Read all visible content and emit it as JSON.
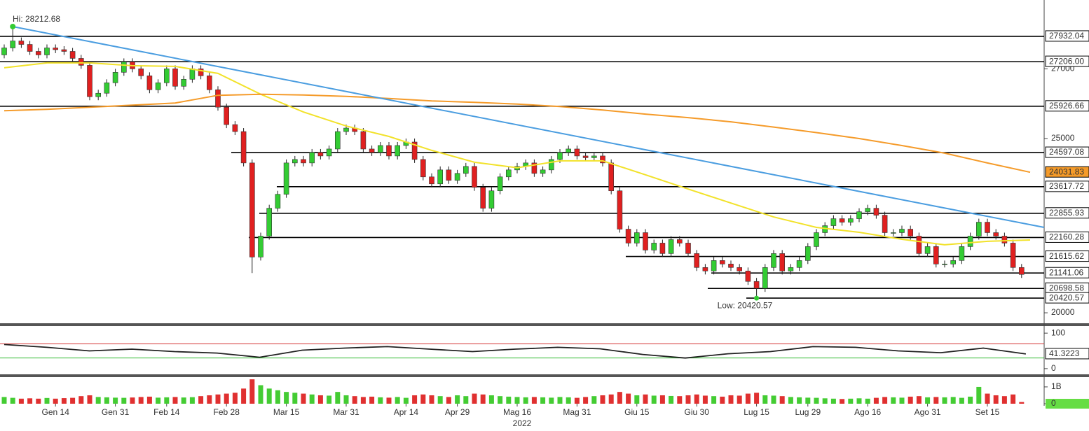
{
  "chart_data": [
    {
      "type": "candlestick",
      "open": [
        27400,
        27600,
        27800,
        27700,
        27500,
        27400,
        27600,
        27550,
        27500,
        27300,
        27100,
        26200,
        26300,
        26600,
        26900,
        27200,
        27000,
        26800,
        26400,
        26600,
        27000,
        26500,
        26700,
        27000,
        26800,
        26400,
        25900,
        25400,
        25200,
        24300,
        21600,
        22200,
        23000,
        23400,
        24300,
        24400,
        24300,
        24600,
        24500,
        24700,
        25200,
        25300,
        25200,
        24700,
        24600,
        24800,
        24500,
        24800,
        24900,
        24400,
        23900,
        23700,
        24100,
        23800,
        24000,
        24200,
        23600,
        23000,
        23500,
        23900,
        24100,
        24200,
        24300,
        24000,
        24100,
        24400,
        24600,
        24700,
        24500,
        24450,
        24500,
        24300,
        23500,
        22400,
        22000,
        22300,
        21800,
        22000,
        21700,
        22100,
        22000,
        21700,
        21300,
        21200,
        21500,
        21400,
        21300,
        21200,
        20900,
        20700,
        21300,
        21700,
        21200,
        21300,
        21500,
        21900,
        22300,
        22500,
        22700,
        22600,
        22700,
        22900,
        23000,
        22800,
        22300,
        22300,
        22400,
        22200,
        21700,
        21900,
        21400,
        21400,
        21500,
        21900,
        22200,
        22600,
        22300,
        22200,
        22000,
        21300
      ],
      "high": [
        27700,
        28212.68,
        27900,
        27800,
        27600,
        27700,
        27700,
        27650,
        27600,
        27400,
        27200,
        26400,
        26700,
        27000,
        27300,
        27300,
        27100,
        26900,
        26700,
        27100,
        27100,
        26800,
        27100,
        27100,
        26900,
        26500,
        26000,
        25500,
        25300,
        24400,
        22300,
        23100,
        23500,
        24400,
        24500,
        24500,
        24700,
        24700,
        24800,
        25300,
        25400,
        25400,
        25300,
        24800,
        24900,
        24900,
        24900,
        25000,
        25000,
        24500,
        24000,
        24200,
        24200,
        24100,
        24300,
        24300,
        23700,
        23600,
        24000,
        24200,
        24300,
        24400,
        24400,
        24200,
        24500,
        24700,
        24800,
        24800,
        24600,
        24600,
        24600,
        24400,
        23600,
        22500,
        22400,
        22400,
        22100,
        22100,
        22200,
        22200,
        22100,
        21800,
        21400,
        21600,
        21600,
        21500,
        21400,
        21300,
        21000,
        21400,
        21800,
        21800,
        21400,
        21600,
        22000,
        22400,
        22600,
        22800,
        22800,
        22800,
        23000,
        23100,
        23100,
        22900,
        22400,
        22500,
        22500,
        22300,
        22000,
        22000,
        21500,
        21600,
        22000,
        22300,
        22700,
        22700,
        22400,
        22300,
        22100,
        21400
      ],
      "low": [
        27300,
        27500,
        27600,
        27400,
        27300,
        27300,
        27450,
        27400,
        27200,
        27000,
        26100,
        26100,
        26200,
        26500,
        26800,
        26900,
        26700,
        26300,
        26300,
        26500,
        26400,
        26400,
        26600,
        26700,
        26300,
        25800,
        25300,
        25100,
        24200,
        21140,
        21500,
        22100,
        22900,
        23300,
        24200,
        24200,
        24200,
        24400,
        24400,
        24600,
        25100,
        25100,
        24600,
        24500,
        24500,
        24400,
        24400,
        24700,
        24300,
        23800,
        23600,
        23600,
        23700,
        23700,
        23900,
        23500,
        22900,
        22900,
        23400,
        23800,
        24000,
        24100,
        23900,
        23900,
        24000,
        24300,
        24500,
        24400,
        24350,
        24350,
        24200,
        23400,
        22300,
        21900,
        21900,
        21700,
        21700,
        21600,
        21600,
        21900,
        21600,
        21200,
        21100,
        21100,
        21300,
        21200,
        21100,
        20800,
        20420.57,
        20600,
        21200,
        21100,
        21100,
        21200,
        21400,
        21800,
        22200,
        22400,
        22500,
        22500,
        22600,
        22800,
        22700,
        22200,
        22200,
        22200,
        22100,
        21600,
        21600,
        21300,
        21300,
        21300,
        21400,
        21800,
        22100,
        22200,
        22100,
        21900,
        21200,
        21000
      ],
      "close": [
        27600,
        27800,
        27700,
        27500,
        27400,
        27600,
        27550,
        27500,
        27300,
        27100,
        26200,
        26300,
        26600,
        26900,
        27200,
        27000,
        26800,
        26400,
        26600,
        27000,
        26500,
        26700,
        27000,
        26800,
        26400,
        25900,
        25400,
        25200,
        24300,
        21600,
        22200,
        23000,
        23400,
        24300,
        24400,
        24300,
        24600,
        24500,
        24700,
        25200,
        25300,
        25200,
        24700,
        24600,
        24800,
        24500,
        24800,
        24900,
        24400,
        23900,
        23700,
        24100,
        23800,
        24000,
        24200,
        23600,
        23000,
        23500,
        23900,
        24100,
        24200,
        24300,
        24000,
        24100,
        24400,
        24600,
        24700,
        24500,
        24450,
        24500,
        24300,
        23500,
        22400,
        22000,
        22300,
        21800,
        22000,
        21700,
        22100,
        22000,
        21700,
        21300,
        21200,
        21500,
        21400,
        21300,
        21200,
        20900,
        20700,
        21300,
        21700,
        21200,
        21300,
        21500,
        21900,
        22300,
        22500,
        22700,
        22600,
        22700,
        22900,
        23000,
        22800,
        22300,
        22300,
        22400,
        22200,
        21700,
        21900,
        21400,
        21400,
        21500,
        21900,
        22200,
        22600,
        22300,
        22200,
        22000,
        21300,
        21100
      ],
      "up_color": "#33cc33",
      "down_color": "#e02020",
      "ylim": [
        19700,
        28975
      ],
      "yticks": [
        20000,
        25000,
        27000
      ],
      "series": [
        {
          "color": "#f2e22a",
          "values": [
            27030,
            27170,
            27170,
            27090,
            27070,
            26870,
            26270,
            25760,
            25360,
            25060,
            24660,
            24320,
            24160,
            24360,
            24360,
            23960,
            23550,
            23150,
            22750,
            22450,
            22310,
            22110,
            21950,
            22050,
            22090
          ]
        },
        {
          "color": "#f59b2a",
          "values": [
            25800,
            25840,
            25900,
            25960,
            26020,
            26240,
            26270,
            26250,
            26210,
            26150,
            26080,
            26040,
            25990,
            25920,
            25820,
            25700,
            25600,
            25480,
            25330,
            25170,
            25000,
            24800,
            24580,
            24300,
            24031.83
          ]
        }
      ],
      "trendline": {
        "color": "#4a9de0",
        "values": [
          28212.68,
          22450
        ]
      },
      "levels": [
        27932.04,
        {
          "value": 27206,
          "label": "27206.00"
        },
        25926.66,
        24597.08,
        23617.72,
        22855.93,
        22160.28,
        21615.62,
        21141.06,
        20698.58,
        20420.57
      ],
      "annotations": [
        "Hi: 28212.68",
        "Low: 20420.57"
      ]
    },
    {
      "type": "line",
      "series": [
        {
          "color": "#222222",
          "values": [
            68,
            60,
            50,
            55,
            48,
            44,
            32,
            52,
            58,
            62,
            55,
            48,
            55,
            60,
            56,
            40,
            30,
            42,
            48,
            62,
            60,
            50,
            45,
            58,
            41.3223
          ]
        }
      ],
      "ylim": [
        -16,
        120
      ],
      "yticks": [
        0,
        100
      ],
      "levels": [
        {
          "value": 70,
          "color": "#d33333"
        },
        {
          "value": 30,
          "color": "#33bb33"
        }
      ]
    },
    {
      "type": "bar",
      "categories": [
        null,
        null,
        null,
        null,
        null,
        null,
        "Gen 14",
        null,
        null,
        null,
        null,
        null,
        null,
        "Gen 31",
        null,
        null,
        null,
        null,
        null,
        "Feb 14",
        null,
        null,
        null,
        null,
        null,
        null,
        "Feb 28",
        null,
        null,
        null,
        null,
        null,
        null,
        "Mar 15",
        null,
        null,
        null,
        null,
        null,
        null,
        "Mar 31",
        null,
        null,
        null,
        null,
        null,
        null,
        "Apr 14",
        null,
        null,
        null,
        null,
        null,
        "Apr 29",
        null,
        null,
        null,
        null,
        null,
        null,
        "Mag 16",
        null,
        null,
        null,
        null,
        null,
        null,
        "Mag 31",
        null,
        null,
        null,
        null,
        null,
        null,
        "Giu 15",
        null,
        null,
        null,
        null,
        null,
        null,
        "Giu 30",
        null,
        null,
        null,
        null,
        null,
        null,
        "Lug 15",
        null,
        null,
        null,
        null,
        null,
        "Lug 29",
        null,
        null,
        null,
        null,
        null,
        null,
        "Ago 16",
        null,
        null,
        null,
        null,
        null,
        null,
        "Ago 31",
        null,
        null,
        null,
        null,
        null,
        null,
        "Set 15",
        null,
        null,
        null,
        null
      ],
      "xlabel": "2022",
      "values": [
        400000000.0,
        350000000.0,
        300000000.0,
        320000000.0,
        300000000.0,
        340000000.0,
        300000000.0,
        330000000.0,
        350000000.0,
        450000000.0,
        500000000.0,
        400000000.0,
        380000000.0,
        360000000.0,
        350000000.0,
        370000000.0,
        400000000.0,
        420000000.0,
        360000000.0,
        380000000.0,
        400000000.0,
        370000000.0,
        390000000.0,
        450000000.0,
        500000000.0,
        550000000.0,
        600000000.0,
        650000000.0,
        900000000.0,
        1450000000.0,
        1100000000.0,
        900000000.0,
        800000000.0,
        700000000.0,
        650000000.0,
        600000000.0,
        550000000.0,
        500000000.0,
        480000000.0,
        700000000.0,
        500000000.0,
        450000000.0,
        400000000.0,
        420000000.0,
        380000000.0,
        360000000.0,
        400000000.0,
        350000000.0,
        500000000.0,
        550000000.0,
        500000000.0,
        450000000.0,
        400000000.0,
        500000000.0,
        450000000.0,
        600000000.0,
        550000000.0,
        500000000.0,
        450000000.0,
        420000000.0,
        400000000.0,
        380000000.0,
        400000000.0,
        380000000.0,
        360000000.0,
        400000000.0,
        380000000.0,
        350000000.0,
        400000000.0,
        450000000.0,
        500000000.0,
        550000000.0,
        700000000.0,
        600000000.0,
        500000000.0,
        550000000.0,
        480000000.0,
        500000000.0,
        460000000.0,
        450000000.0,
        500000000.0,
        550000000.0,
        480000000.0,
        450000000.0,
        420000000.0,
        500000000.0,
        480000000.0,
        600000000.0,
        650000000.0,
        500000000.0,
        480000000.0,
        450000000.0,
        400000000.0,
        380000000.0,
        360000000.0,
        350000000.0,
        320000000.0,
        300000000.0,
        280000000.0,
        300000000.0,
        320000000.0,
        300000000.0,
        350000000.0,
        400000000.0,
        380000000.0,
        360000000.0,
        420000000.0,
        450000000.0,
        380000000.0,
        400000000.0,
        380000000.0,
        400000000.0,
        350000000.0,
        420000000.0,
        1000000000.0,
        600000000.0,
        500000000.0,
        450000000.0,
        550000000.0,
        100000000.0
      ],
      "ylim": [
        0,
        1580000000
      ],
      "yticks": [
        0,
        {
          "value": 1000000000,
          "label": "1B"
        }
      ]
    }
  ]
}
